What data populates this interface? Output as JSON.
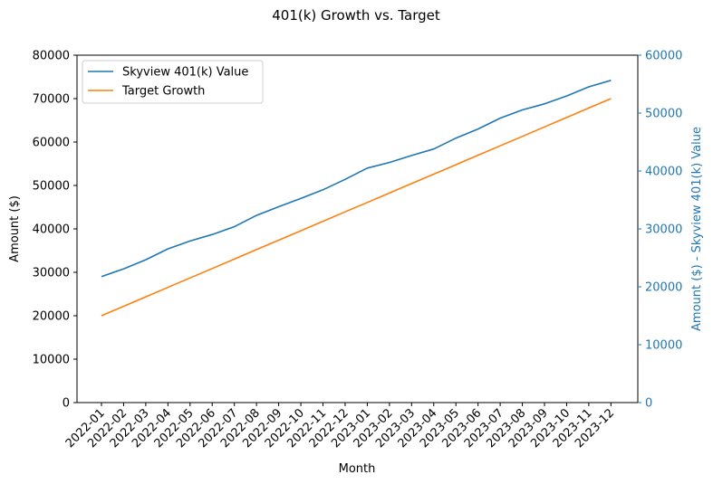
{
  "chart_data": {
    "type": "line",
    "title": "401(k) Growth vs. Target",
    "xlabel": "Month",
    "ylabel": "Amount ($)",
    "y2label": "Amount ($) - Skyview 401(k) Value",
    "ylim": [
      0,
      80000
    ],
    "y2lim": [
      0,
      60000
    ],
    "yticks": [
      "0",
      "10000",
      "20000",
      "30000",
      "40000",
      "50000",
      "60000",
      "70000",
      "80000"
    ],
    "y2ticks": [
      "0",
      "10000",
      "20000",
      "30000",
      "40000",
      "50000",
      "60000"
    ],
    "categories": [
      "2022-01",
      "2022-02",
      "2022-03",
      "2022-04",
      "2022-05",
      "2022-06",
      "2022-07",
      "2022-08",
      "2022-09",
      "2022-10",
      "2022-11",
      "2022-12",
      "2023-01",
      "2023-02",
      "2023-03",
      "2023-04",
      "2023-05",
      "2023-06",
      "2023-07",
      "2023-08",
      "2023-09",
      "2023-10",
      "2023-11",
      "2023-12"
    ],
    "series": [
      {
        "name": "Skyview 401(k) Value",
        "color": "#1f77b4",
        "values": [
          29000,
          30800,
          32900,
          35400,
          37200,
          38700,
          40500,
          43100,
          45100,
          47000,
          49000,
          51400,
          54000,
          55300,
          56900,
          58400,
          60900,
          63000,
          65500,
          67400,
          68800,
          70600,
          72700,
          74200
        ]
      },
      {
        "name": "Target Growth",
        "color": "#ff7f0e",
        "values": [
          20000,
          22170,
          24350,
          26520,
          28700,
          30870,
          33040,
          35220,
          37390,
          39570,
          41740,
          43910,
          46090,
          48260,
          50430,
          52610,
          54780,
          56960,
          59130,
          61300,
          63480,
          65650,
          67830,
          70000
        ]
      }
    ],
    "legend": "top-left",
    "grid": false,
    "secondary_axis_color": "#1f77b4"
  }
}
